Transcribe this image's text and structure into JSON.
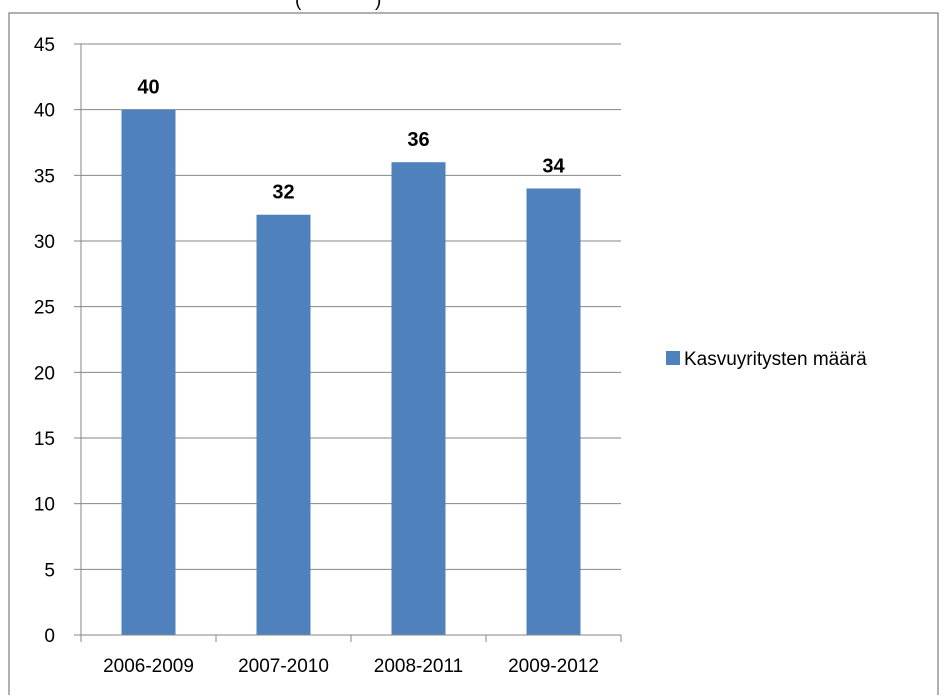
{
  "chart_data": {
    "type": "bar",
    "title_fragment": "(",
    "title_fragment_end": ")",
    "categories": [
      "2006-2009",
      "2007-2010",
      "2008-2011",
      "2009-2012"
    ],
    "series": [
      {
        "name": "Kasvuyritysten määrä",
        "values": [
          40,
          32,
          36,
          34
        ],
        "color": "#4F81BD"
      }
    ],
    "ylim": [
      0,
      45
    ],
    "yticks": [
      0,
      5,
      10,
      15,
      20,
      25,
      30,
      35,
      40,
      45
    ],
    "grid": true,
    "legend_position": "right",
    "data_labels": true
  }
}
